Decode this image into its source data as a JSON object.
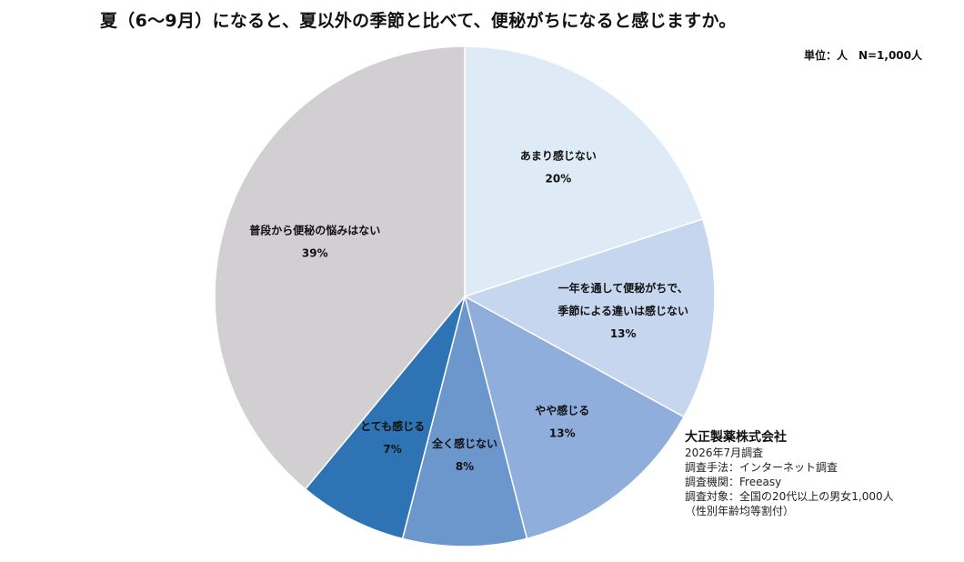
{
  "title": "夏（6〜9月）になると、夏以外の季節と比べて、便秘がちになると感じますか。",
  "unit_note": "単位：人　N=1,000人",
  "chart_data": {
    "type": "pie",
    "start_angle_deg": 0,
    "direction": "clockwise",
    "slices": [
      {
        "label": [
          "あまり感じない"
        ],
        "value": 20,
        "display": "20%",
        "color": "#deebf7"
      },
      {
        "label": [
          "一年を通して便秘がちで、",
          "季節による違いは感じない"
        ],
        "value": 13,
        "display": "13%",
        "color": "#c6d6ee"
      },
      {
        "label": [
          "やや感じる"
        ],
        "value": 13,
        "display": "13%",
        "color": "#8faedb"
      },
      {
        "label": [
          "全く感じない"
        ],
        "value": 8,
        "display": "8%",
        "color": "#6b97cd"
      },
      {
        "label": [
          "とても感じる"
        ],
        "value": 7,
        "display": "7%",
        "color": "#2e74b5"
      },
      {
        "label": [
          "普段から便秘の悩みはない"
        ],
        "value": 39,
        "display": "39%",
        "color": "#d1cfd1"
      }
    ]
  },
  "source": {
    "company": "大正製薬株式会社",
    "lines": [
      "2026年7月調査",
      "調査手法：インターネット調査",
      "調査機関：Freeasy",
      "調査対象：全国の20代以上の男女1,000人",
      "（性別年齢均等割付）"
    ]
  }
}
